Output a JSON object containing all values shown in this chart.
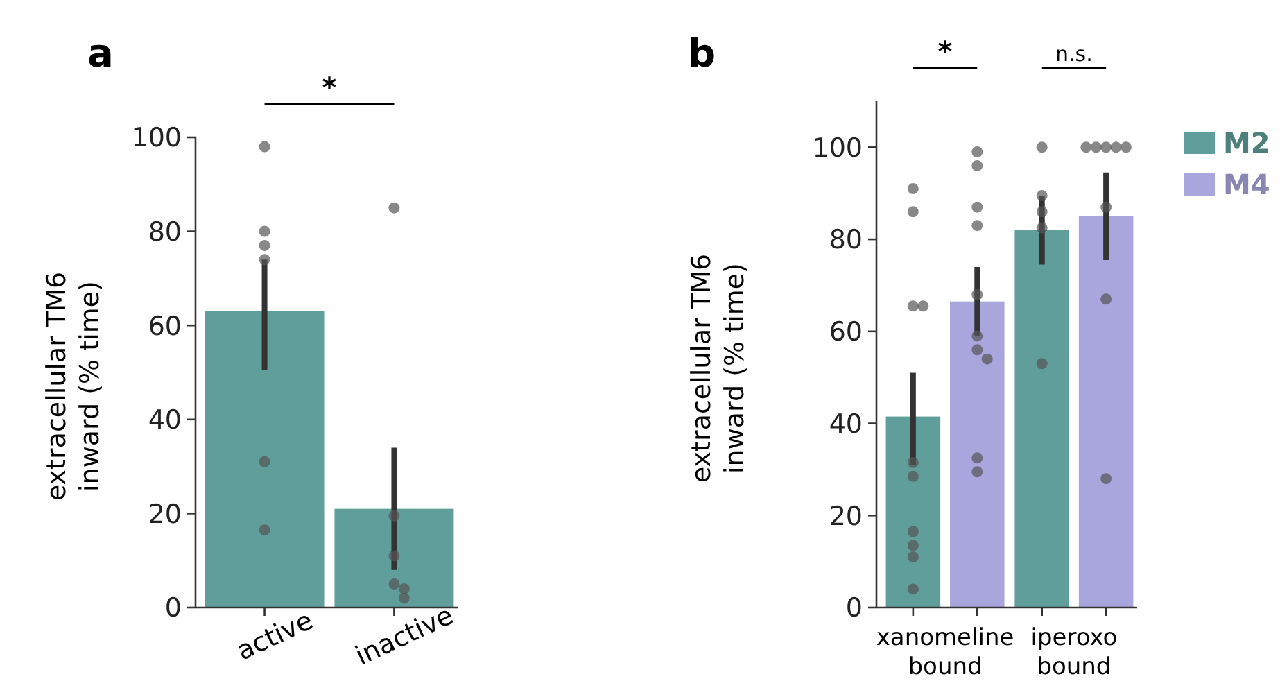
{
  "chart_data": [
    {
      "type": "bar",
      "title": "a",
      "ylabel": "extracellular TM6\ninward (% time)",
      "categories": [
        "active",
        "inactive"
      ],
      "ylim": [
        0,
        100
      ],
      "yticks": [
        0,
        20,
        40,
        60,
        80,
        100
      ],
      "grid": false,
      "legend": false,
      "annotations": [
        "*"
      ],
      "series": [
        {
          "type": "bar",
          "color": "#5f9e9a",
          "values": [
            63,
            21
          ],
          "errors": [
            [
              50.5,
              74
            ],
            [
              8,
              34
            ]
          ]
        },
        {
          "type": "scatter",
          "color": "#555555",
          "x": [
            "active",
            "active",
            "active",
            "active",
            "active",
            "active",
            "inactive",
            "inactive",
            "inactive",
            "inactive",
            "inactive",
            "inactive"
          ],
          "values": [
            98,
            80,
            77,
            74,
            31,
            16.5,
            85,
            19.5,
            11,
            5,
            4,
            2
          ]
        }
      ]
    },
    {
      "type": "bar",
      "title": "b",
      "ylabel": "extracellular TM6\ninward (% time)",
      "categories": [
        "xanomeline bound",
        "iperoxo bound"
      ],
      "ylim": [
        0,
        110
      ],
      "yticks": [
        0,
        20,
        40,
        60,
        80,
        100
      ],
      "grid": false,
      "legend": "right",
      "annotations": [
        "*",
        "n.s."
      ],
      "series": [
        {
          "type": "bar",
          "name": "M2",
          "color": "#5f9e9a",
          "values": [
            41.5,
            82
          ],
          "errors": [
            [
              31,
              51
            ],
            [
              74.5,
              89.5
            ]
          ]
        },
        {
          "type": "bar",
          "name": "M4",
          "color": "#a9a6de",
          "values": [
            66.5,
            85
          ],
          "errors": [
            [
              59,
              74
            ],
            [
              75.5,
              94.5
            ]
          ]
        },
        {
          "type": "scatter",
          "color": "#555555",
          "x": [
            "xanomeline bound",
            "xanomeline bound",
            "xanomeline bound",
            "xanomeline bound",
            "xanomeline bound",
            "xanomeline bound",
            "xanomeline bound",
            "xanomeline bound",
            "xanomeline bound",
            "xanomeline bound",
            "iperoxo bound",
            "iperoxo bound",
            "iperoxo bound",
            "iperoxo bound",
            "iperoxo bound"
          ],
          "values": [
            91,
            86,
            65.5,
            65.5,
            31.5,
            28.5,
            16.5,
            13.5,
            11,
            4,
            100,
            89.5,
            86,
            82.5,
            53
          ]
        },
        {
          "type": "scatter",
          "color": "#555555",
          "x": [
            "xanomeline bound",
            "xanomeline bound",
            "xanomeline bound",
            "xanomeline bound",
            "xanomeline bound",
            "xanomeline bound",
            "xanomeline bound",
            "xanomeline bound",
            "xanomeline bound",
            "xanomeline bound",
            "iperoxo bound",
            "iperoxo bound",
            "iperoxo bound",
            "iperoxo bound",
            "iperoxo bound",
            "iperoxo bound",
            "iperoxo bound",
            "iperoxo bound"
          ],
          "values": [
            99,
            96,
            87,
            83,
            68,
            59,
            56,
            54,
            32.5,
            29.5,
            100,
            100,
            100,
            100,
            100,
            87,
            67,
            28
          ]
        }
      ]
    }
  ]
}
